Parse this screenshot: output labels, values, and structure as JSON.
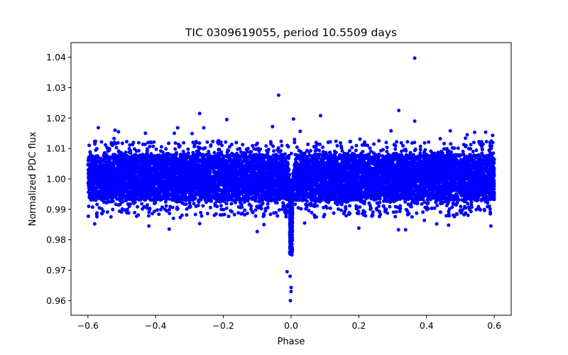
{
  "chart_data": {
    "type": "scatter",
    "title": "TIC 0309619055, period 10.5509 days",
    "xlabel": "Phase",
    "ylabel": "Normalized PDC flux",
    "xlim": [
      -0.65,
      0.65
    ],
    "ylim": [
      0.9552,
      1.0448
    ],
    "xticks": [
      -0.6,
      -0.4,
      -0.2,
      0.0,
      0.2,
      0.4,
      0.6
    ],
    "xtick_labels": [
      "−0.6",
      "−0.4",
      "−0.2",
      "0.0",
      "0.2",
      "0.4",
      "0.6"
    ],
    "yticks": [
      0.96,
      0.97,
      0.98,
      0.99,
      1.0,
      1.01,
      1.02,
      1.03,
      1.04
    ],
    "ytick_labels": [
      "0.96",
      "0.97",
      "0.98",
      "0.99",
      "1.00",
      "1.01",
      "1.02",
      "1.03",
      "1.04"
    ],
    "grid": false,
    "marker_color": "#0000ff",
    "series": [
      {
        "name": "flux",
        "baseline": 1.0,
        "band_range": [
          0.993,
          1.008
        ],
        "phase_range": [
          -0.6,
          0.6
        ],
        "transit": {
          "center_phase": 0.0,
          "min_flux": 0.975,
          "half_width_phase": 0.006
        },
        "outliers": [
          {
            "x": 0.365,
            "y": 1.0397
          },
          {
            "x": -0.037,
            "y": 1.0275
          },
          {
            "x": 0.318,
            "y": 1.0225
          },
          {
            "x": -0.27,
            "y": 1.0215
          },
          {
            "x": 0.087,
            "y": 1.0208
          },
          {
            "x": -0.19,
            "y": 1.0195
          },
          {
            "x": 0.007,
            "y": 1.0197
          },
          {
            "x": 0.365,
            "y": 1.019
          },
          {
            "x": -0.258,
            "y": 1.0168
          },
          {
            "x": -0.335,
            "y": 1.0168
          },
          {
            "x": -0.055,
            "y": 1.0172
          },
          {
            "x": -0.52,
            "y": 1.016
          },
          {
            "x": -0.51,
            "y": 1.0155
          },
          {
            "x": 0.295,
            "y": 1.0158
          },
          {
            "x": 0.47,
            "y": 1.0158
          },
          {
            "x": 0.542,
            "y": 1.0153
          },
          {
            "x": -0.345,
            "y": 1.015
          },
          {
            "x": -0.43,
            "y": 1.015
          },
          {
            "x": 0.52,
            "y": 1.0145
          },
          {
            "x": 0.595,
            "y": 1.0143
          },
          {
            "x": -0.012,
            "y": 0.9695
          },
          {
            "x": -0.003,
            "y": 0.968
          },
          {
            "x": 0.0,
            "y": 0.9643
          },
          {
            "x": 0.0,
            "y": 0.963
          },
          {
            "x": -0.002,
            "y": 0.96
          },
          {
            "x": -0.08,
            "y": 0.985
          },
          {
            "x": -0.1,
            "y": 0.9827
          },
          {
            "x": -0.27,
            "y": 0.9853
          },
          {
            "x": 0.317,
            "y": 0.9833
          },
          {
            "x": 0.338,
            "y": 0.9833
          },
          {
            "x": 0.2,
            "y": 0.9838
          },
          {
            "x": -0.58,
            "y": 0.9852
          },
          {
            "x": -0.42,
            "y": 0.9845
          },
          {
            "x": -0.36,
            "y": 0.9835
          },
          {
            "x": 0.59,
            "y": 0.9845
          },
          {
            "x": 0.465,
            "y": 0.9848
          },
          {
            "x": 0.43,
            "y": 0.9852
          },
          {
            "x": 0.04,
            "y": 0.9855
          }
        ]
      }
    ]
  }
}
